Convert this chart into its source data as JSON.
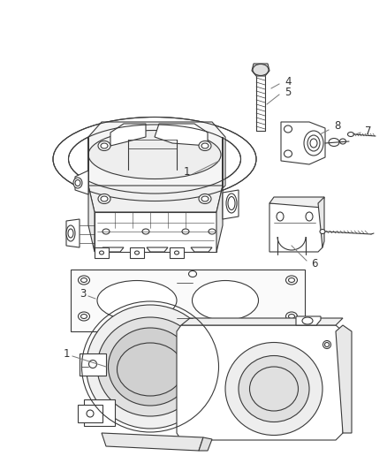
{
  "bg_color": "#ffffff",
  "line_color": "#3a3a3a",
  "line_width": 0.8,
  "label_color": "#333333",
  "font_size": 8.5
}
